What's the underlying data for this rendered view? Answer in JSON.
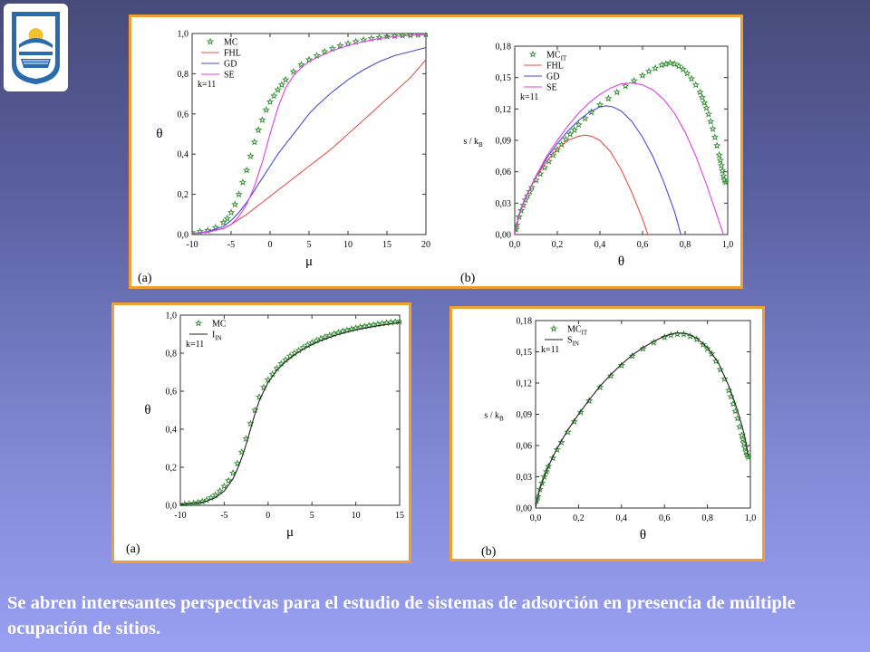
{
  "caption": "Se abren interesantes perspectivas para el estudio de sistemas de adsorción en presencia de múltiple ocupación de sitios.",
  "colors": {
    "mc": "#2e8b2e",
    "fhl": "#e8504a",
    "gd": "#4a4ad8",
    "se": "#e040e0",
    "exact": "#222222",
    "panel_border": "#f0a030",
    "logo_blue": "#2a6bb0"
  },
  "logo": {
    "icon": "university-logo-icon"
  },
  "chart_data": [
    {
      "id": "top-left",
      "panel_label": "(a)",
      "type": "line",
      "xlabel": "μ",
      "ylabel": "θ",
      "annotation": "k=11",
      "xlim": [
        -10,
        20
      ],
      "ylim": [
        0,
        1.0
      ],
      "xticks": [
        -10,
        -5,
        0,
        5,
        10,
        15,
        20
      ],
      "xtick_labels": [
        "-10",
        "-5",
        "0",
        "5",
        "10",
        "15",
        "20"
      ],
      "yticks": [
        0,
        0.2,
        0.4,
        0.6,
        0.8,
        1.0
      ],
      "ytick_labels": [
        "0,0",
        "0,2",
        "0,4",
        "0,6",
        "0,8",
        "1,0"
      ],
      "legend": [
        "MC",
        "FHL",
        "GD",
        "SE"
      ],
      "series": [
        {
          "name": "MC",
          "style": "stars",
          "color": "#2e8b2e",
          "x": [
            -10,
            -9,
            -8,
            -7,
            -6,
            -5.5,
            -5,
            -4.5,
            -4,
            -3.5,
            -3,
            -2.5,
            -2,
            -1.5,
            -1,
            -0.5,
            0,
            0.5,
            1,
            1.5,
            2,
            3,
            4,
            5,
            6,
            7,
            8,
            9,
            10,
            11,
            12,
            13,
            14,
            15,
            16,
            17,
            18,
            19,
            20
          ],
          "y": [
            0.01,
            0.015,
            0.02,
            0.035,
            0.06,
            0.08,
            0.11,
            0.15,
            0.2,
            0.26,
            0.32,
            0.39,
            0.46,
            0.52,
            0.57,
            0.62,
            0.66,
            0.69,
            0.72,
            0.745,
            0.77,
            0.81,
            0.845,
            0.87,
            0.89,
            0.91,
            0.925,
            0.94,
            0.95,
            0.96,
            0.968,
            0.975,
            0.98,
            0.985,
            0.988,
            0.99,
            0.992,
            0.994,
            0.995
          ]
        },
        {
          "name": "FHL",
          "style": "line",
          "color": "#e8504a",
          "x": [
            -10,
            -8,
            -6,
            -5,
            -4,
            -3,
            -2,
            -1,
            0,
            1,
            2,
            3,
            4,
            5,
            6,
            7,
            8,
            10,
            12,
            14,
            16,
            18,
            20
          ],
          "y": [
            0.005,
            0.012,
            0.03,
            0.05,
            0.075,
            0.1,
            0.13,
            0.16,
            0.19,
            0.22,
            0.25,
            0.28,
            0.31,
            0.34,
            0.37,
            0.4,
            0.43,
            0.5,
            0.57,
            0.64,
            0.71,
            0.78,
            0.87
          ]
        },
        {
          "name": "GD",
          "style": "line",
          "color": "#4a4ad8",
          "x": [
            -10,
            -8,
            -6,
            -5,
            -4,
            -3,
            -2,
            -1,
            0,
            1,
            2,
            3,
            4,
            5,
            6,
            8,
            10,
            12,
            14,
            16,
            18,
            20
          ],
          "y": [
            0.005,
            0.015,
            0.04,
            0.07,
            0.11,
            0.16,
            0.22,
            0.28,
            0.34,
            0.4,
            0.45,
            0.5,
            0.55,
            0.6,
            0.64,
            0.71,
            0.77,
            0.82,
            0.86,
            0.89,
            0.91,
            0.93
          ]
        },
        {
          "name": "SE",
          "style": "line",
          "color": "#e040e0",
          "x": [
            -10,
            -8,
            -6,
            -5,
            -4,
            -3,
            -2,
            -1,
            0,
            1,
            2,
            3,
            4,
            5,
            6,
            8,
            10,
            12,
            14,
            16,
            18,
            20
          ],
          "y": [
            0.005,
            0.012,
            0.03,
            0.05,
            0.09,
            0.15,
            0.24,
            0.36,
            0.5,
            0.63,
            0.73,
            0.79,
            0.83,
            0.86,
            0.88,
            0.915,
            0.94,
            0.96,
            0.975,
            0.985,
            0.99,
            0.995
          ]
        }
      ]
    },
    {
      "id": "top-right",
      "panel_label": "(b)",
      "type": "line",
      "xlabel": "θ",
      "ylabel": "s / k",
      "ylabel_sub": "B",
      "annotation": "k=11",
      "xlim": [
        0,
        1.0
      ],
      "ylim": [
        0,
        0.18
      ],
      "xticks": [
        0,
        0.2,
        0.4,
        0.6,
        0.8,
        1.0
      ],
      "xtick_labels": [
        "0,0",
        "0,2",
        "0,4",
        "0,6",
        "0,8",
        "1,0"
      ],
      "yticks": [
        0,
        0.03,
        0.06,
        0.09,
        0.12,
        0.15,
        0.18
      ],
      "ytick_labels": [
        "0,00",
        "0,03",
        "0,06",
        "0,09",
        "0,12",
        "0,15",
        "0,18"
      ],
      "legend": [
        "MC",
        "FHL",
        "GD",
        "SE"
      ],
      "legend_subs": [
        "IT",
        "",
        "",
        ""
      ],
      "series": [
        {
          "name": "MC",
          "legend_sub": "IT",
          "style": "stars",
          "color": "#2e8b2e",
          "x": [
            0.005,
            0.01,
            0.02,
            0.03,
            0.04,
            0.05,
            0.06,
            0.07,
            0.08,
            0.1,
            0.12,
            0.14,
            0.16,
            0.18,
            0.2,
            0.22,
            0.24,
            0.26,
            0.28,
            0.3,
            0.33,
            0.36,
            0.4,
            0.44,
            0.48,
            0.52,
            0.56,
            0.6,
            0.63,
            0.66,
            0.69,
            0.71,
            0.73,
            0.75,
            0.77,
            0.79,
            0.81,
            0.83,
            0.85,
            0.87,
            0.88,
            0.89,
            0.9,
            0.91,
            0.92,
            0.93,
            0.94,
            0.95,
            0.96,
            0.965,
            0.97,
            0.975,
            0.98,
            0.985,
            0.99
          ],
          "y": [
            0.005,
            0.009,
            0.017,
            0.023,
            0.028,
            0.033,
            0.037,
            0.041,
            0.045,
            0.052,
            0.058,
            0.064,
            0.07,
            0.076,
            0.081,
            0.086,
            0.091,
            0.096,
            0.1,
            0.105,
            0.111,
            0.117,
            0.124,
            0.13,
            0.136,
            0.142,
            0.147,
            0.152,
            0.156,
            0.159,
            0.162,
            0.163,
            0.164,
            0.163,
            0.161,
            0.158,
            0.154,
            0.149,
            0.143,
            0.136,
            0.131,
            0.126,
            0.121,
            0.115,
            0.108,
            0.101,
            0.093,
            0.085,
            0.076,
            0.071,
            0.066,
            0.061,
            0.056,
            0.052,
            0.05
          ]
        },
        {
          "name": "FHL",
          "style": "line",
          "color": "#e8504a",
          "x": [
            0,
            0.02,
            0.05,
            0.1,
            0.15,
            0.2,
            0.25,
            0.3,
            0.33,
            0.36,
            0.4,
            0.45,
            0.5,
            0.55,
            0.6,
            0.625
          ],
          "y": [
            0,
            0.018,
            0.035,
            0.055,
            0.07,
            0.082,
            0.09,
            0.094,
            0.095,
            0.094,
            0.09,
            0.079,
            0.062,
            0.04,
            0.015,
            0
          ]
        },
        {
          "name": "GD",
          "style": "line",
          "color": "#4a4ad8",
          "x": [
            0,
            0.02,
            0.05,
            0.1,
            0.15,
            0.2,
            0.25,
            0.3,
            0.35,
            0.4,
            0.43,
            0.46,
            0.5,
            0.55,
            0.6,
            0.65,
            0.7,
            0.75,
            0.78
          ],
          "y": [
            0,
            0.018,
            0.035,
            0.056,
            0.073,
            0.087,
            0.099,
            0.109,
            0.117,
            0.122,
            0.123,
            0.122,
            0.118,
            0.108,
            0.093,
            0.074,
            0.05,
            0.022,
            0
          ]
        },
        {
          "name": "SE",
          "style": "line",
          "color": "#e040e0",
          "x": [
            0,
            0.02,
            0.05,
            0.1,
            0.15,
            0.2,
            0.25,
            0.3,
            0.35,
            0.4,
            0.45,
            0.5,
            0.55,
            0.6,
            0.65,
            0.7,
            0.75,
            0.8,
            0.85,
            0.9,
            0.95,
            0.98
          ],
          "y": [
            0,
            0.018,
            0.035,
            0.056,
            0.075,
            0.09,
            0.104,
            0.116,
            0.126,
            0.134,
            0.14,
            0.144,
            0.145,
            0.143,
            0.138,
            0.129,
            0.116,
            0.098,
            0.075,
            0.048,
            0.018,
            0
          ]
        }
      ]
    },
    {
      "id": "bottom-left",
      "panel_label": "(a)",
      "type": "line",
      "xlabel": "μ",
      "ylabel": "θ",
      "annotation": "k=11",
      "xlim": [
        -10,
        15
      ],
      "ylim": [
        0,
        1.0
      ],
      "xticks": [
        -10,
        -5,
        0,
        5,
        10,
        15
      ],
      "xtick_labels": [
        "-10",
        "-5",
        "0",
        "5",
        "10",
        "15"
      ],
      "yticks": [
        0,
        0.2,
        0.4,
        0.6,
        0.8,
        1.0
      ],
      "ytick_labels": [
        "0,0",
        "0,2",
        "0,4",
        "0,6",
        "0,8",
        "1,0"
      ],
      "legend": [
        "MC",
        "I"
      ],
      "legend_subs": [
        "",
        "IN"
      ],
      "series": [
        {
          "name": "MC",
          "style": "stars",
          "color": "#2e8b2e",
          "x": [
            -10,
            -9.5,
            -9,
            -8.5,
            -8,
            -7.5,
            -7,
            -6.5,
            -6,
            -5.5,
            -5,
            -4.5,
            -4,
            -3.5,
            -3,
            -2.5,
            -2,
            -1.5,
            -1,
            -0.5,
            0,
            0.5,
            1,
            1.5,
            2,
            2.5,
            3,
            3.5,
            4,
            4.5,
            5,
            5.5,
            6,
            6.5,
            7,
            7.5,
            8,
            8.5,
            9,
            9.5,
            10,
            10.5,
            11,
            11.5,
            12,
            12.5,
            13,
            13.5,
            14,
            14.5,
            15
          ],
          "y": [
            0.005,
            0.006,
            0.008,
            0.01,
            0.014,
            0.02,
            0.028,
            0.04,
            0.055,
            0.075,
            0.1,
            0.13,
            0.17,
            0.22,
            0.28,
            0.35,
            0.43,
            0.5,
            0.57,
            0.62,
            0.66,
            0.69,
            0.72,
            0.745,
            0.765,
            0.785,
            0.8,
            0.815,
            0.83,
            0.843,
            0.855,
            0.866,
            0.876,
            0.885,
            0.893,
            0.901,
            0.908,
            0.915,
            0.921,
            0.927,
            0.932,
            0.937,
            0.941,
            0.945,
            0.949,
            0.953,
            0.956,
            0.959,
            0.962,
            0.965,
            0.967
          ]
        },
        {
          "name": "I",
          "legend_sub": "IN",
          "style": "line",
          "color": "#222222",
          "x": [
            -10,
            -9,
            -8,
            -7,
            -6,
            -5,
            -4,
            -3.5,
            -3,
            -2.5,
            -2,
            -1.5,
            -1,
            -0.5,
            0,
            1,
            2,
            3,
            4,
            5,
            6,
            7,
            8,
            9,
            10,
            11,
            12,
            13,
            14,
            15
          ],
          "y": [
            0.004,
            0.007,
            0.012,
            0.022,
            0.04,
            0.075,
            0.14,
            0.19,
            0.25,
            0.32,
            0.4,
            0.48,
            0.55,
            0.6,
            0.645,
            0.71,
            0.755,
            0.79,
            0.82,
            0.845,
            0.865,
            0.883,
            0.898,
            0.911,
            0.922,
            0.932,
            0.94,
            0.948,
            0.955,
            0.961
          ]
        }
      ]
    },
    {
      "id": "bottom-right",
      "panel_label": "(b)",
      "type": "line",
      "xlabel": "θ",
      "ylabel": "s / k",
      "ylabel_sub": "B",
      "annotation": "k=11",
      "xlim": [
        0,
        1.0
      ],
      "ylim": [
        0,
        0.18
      ],
      "xticks": [
        0,
        0.2,
        0.4,
        0.6,
        0.8,
        1.0
      ],
      "xtick_labels": [
        "0,0",
        "0,2",
        "0,4",
        "0,6",
        "0,8",
        "1,0"
      ],
      "yticks": [
        0,
        0.03,
        0.06,
        0.09,
        0.12,
        0.15,
        0.18
      ],
      "ytick_labels": [
        "0,00",
        "0,03",
        "0,06",
        "0,09",
        "0,12",
        "0,15",
        "0,18"
      ],
      "legend": [
        "MC",
        "S"
      ],
      "legend_subs": [
        "IT",
        "IN"
      ],
      "series": [
        {
          "name": "MC",
          "legend_sub": "IT",
          "style": "stars",
          "color": "#2e8b2e",
          "x": [
            0.005,
            0.01,
            0.02,
            0.03,
            0.04,
            0.05,
            0.06,
            0.08,
            0.1,
            0.12,
            0.15,
            0.18,
            0.21,
            0.25,
            0.3,
            0.35,
            0.4,
            0.45,
            0.5,
            0.55,
            0.6,
            0.63,
            0.66,
            0.69,
            0.72,
            0.75,
            0.78,
            0.8,
            0.82,
            0.84,
            0.86,
            0.88,
            0.9,
            0.91,
            0.92,
            0.93,
            0.94,
            0.95,
            0.96,
            0.965,
            0.97,
            0.975,
            0.98,
            0.985,
            0.99
          ],
          "y": [
            0.007,
            0.011,
            0.018,
            0.024,
            0.03,
            0.035,
            0.04,
            0.048,
            0.056,
            0.063,
            0.073,
            0.083,
            0.092,
            0.103,
            0.116,
            0.127,
            0.137,
            0.146,
            0.153,
            0.159,
            0.164,
            0.166,
            0.167,
            0.167,
            0.165,
            0.162,
            0.157,
            0.153,
            0.148,
            0.141,
            0.133,
            0.124,
            0.113,
            0.107,
            0.1,
            0.093,
            0.086,
            0.078,
            0.07,
            0.066,
            0.062,
            0.058,
            0.054,
            0.051,
            0.049
          ]
        },
        {
          "name": "S",
          "legend_sub": "IN",
          "style": "line",
          "color": "#222222",
          "x": [
            0,
            0.005,
            0.01,
            0.02,
            0.04,
            0.06,
            0.08,
            0.1,
            0.15,
            0.2,
            0.25,
            0.3,
            0.35,
            0.4,
            0.45,
            0.5,
            0.55,
            0.6,
            0.65,
            0.68,
            0.71,
            0.75,
            0.8,
            0.85,
            0.9,
            0.93,
            0.95,
            0.97,
            0.98,
            0.99
          ],
          "y": [
            0,
            0.006,
            0.01,
            0.018,
            0.03,
            0.04,
            0.049,
            0.057,
            0.075,
            0.09,
            0.104,
            0.117,
            0.128,
            0.138,
            0.147,
            0.154,
            0.16,
            0.165,
            0.168,
            0.168,
            0.167,
            0.163,
            0.154,
            0.14,
            0.117,
            0.1,
            0.087,
            0.072,
            0.062,
            0.05
          ]
        }
      ]
    }
  ]
}
